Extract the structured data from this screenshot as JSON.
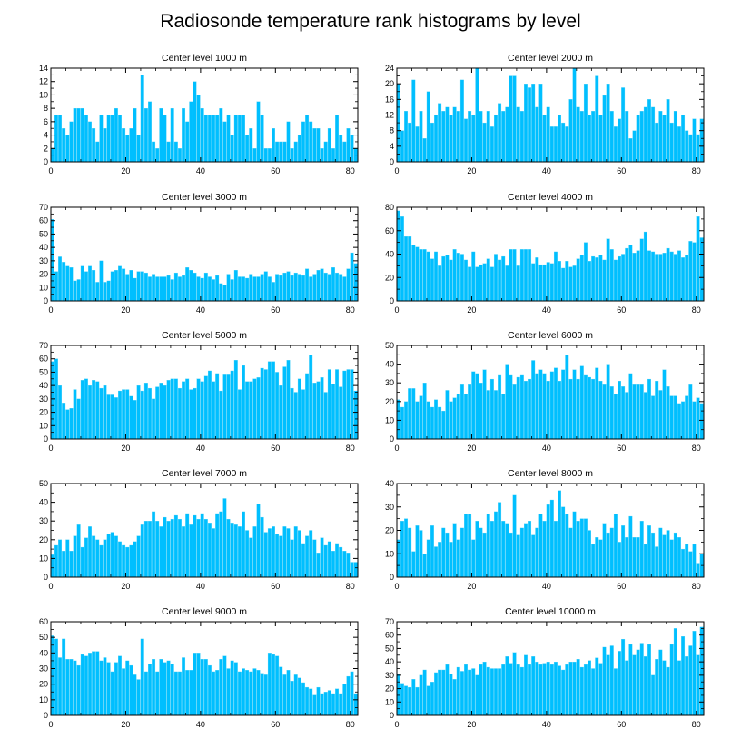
{
  "figure": {
    "title": "Radiosonde temperature rank histograms by level"
  },
  "colors": {
    "bar": "#00BFFF",
    "bar_edge": "#5AD3F6",
    "axis": "#000000",
    "background": "#FFFFFF"
  },
  "chart_data": [
    {
      "type": "bar",
      "title": "Center level 1000 m",
      "xlim": [
        0,
        82
      ],
      "ylim": [
        0,
        14
      ],
      "xticks": [
        0,
        20,
        40,
        60,
        80
      ],
      "yticks": [
        0,
        2,
        4,
        6,
        8,
        10,
        12,
        14
      ],
      "values": [
        2,
        7,
        7,
        5,
        4,
        6,
        8,
        8,
        8,
        7,
        6,
        5,
        3,
        7,
        5,
        7,
        7,
        8,
        7,
        5,
        4,
        5,
        8,
        4,
        13,
        8,
        9,
        3,
        2,
        8,
        7,
        3,
        8,
        3,
        2,
        8,
        6,
        9,
        12,
        10,
        8,
        7,
        7,
        7,
        7,
        8,
        6,
        7,
        4,
        7,
        7,
        7,
        4,
        5,
        2,
        9,
        7,
        2,
        2,
        5,
        3,
        3,
        3,
        6,
        2,
        3,
        4,
        6,
        7,
        6,
        5,
        5,
        2,
        3,
        5,
        2,
        7,
        4,
        3,
        5,
        4,
        2
      ]
    },
    {
      "type": "bar",
      "title": "Center level 2000 m",
      "xlim": [
        0,
        82
      ],
      "ylim": [
        0,
        24
      ],
      "xticks": [
        0,
        20,
        40,
        60,
        80
      ],
      "yticks": [
        0,
        4,
        8,
        12,
        16,
        20,
        24
      ],
      "values": [
        20,
        8,
        13,
        10,
        21,
        9,
        13,
        6,
        18,
        10,
        12,
        15,
        13,
        14,
        12,
        14,
        13,
        21,
        11,
        13,
        12,
        24,
        13,
        10,
        13,
        9,
        12,
        15,
        13,
        14,
        22,
        22,
        14,
        13,
        20,
        19,
        20,
        14,
        20,
        12,
        14,
        9,
        9,
        12,
        10,
        9,
        16,
        24,
        14,
        13,
        20,
        12,
        13,
        22,
        12,
        17,
        20,
        13,
        9,
        11,
        19,
        13,
        6,
        8,
        12,
        13,
        14,
        16,
        14,
        10,
        13,
        12,
        16,
        10,
        13,
        9,
        12,
        8,
        7,
        11,
        7,
        11
      ]
    },
    {
      "type": "bar",
      "title": "Center level 3000 m",
      "xlim": [
        0,
        82
      ],
      "ylim": [
        0,
        70
      ],
      "xticks": [
        0,
        20,
        40,
        60,
        80
      ],
      "yticks": [
        0,
        10,
        20,
        30,
        40,
        50,
        60,
        70
      ],
      "values": [
        61,
        22,
        33,
        29,
        26,
        25,
        15,
        16,
        26,
        22,
        26,
        23,
        14,
        30,
        14,
        15,
        22,
        23,
        26,
        24,
        20,
        23,
        17,
        22,
        22,
        21,
        18,
        20,
        18,
        18,
        18,
        19,
        16,
        21,
        18,
        19,
        25,
        23,
        21,
        18,
        17,
        21,
        18,
        16,
        19,
        13,
        12,
        20,
        16,
        23,
        18,
        18,
        17,
        20,
        18,
        18,
        20,
        22,
        18,
        14,
        20,
        19,
        21,
        22,
        19,
        21,
        20,
        19,
        24,
        18,
        20,
        23,
        24,
        21,
        20,
        25,
        21,
        20,
        18,
        24,
        36,
        28
      ]
    },
    {
      "type": "bar",
      "title": "Center level 4000 m",
      "xlim": [
        0,
        82
      ],
      "ylim": [
        0,
        80
      ],
      "xticks": [
        0,
        20,
        40,
        60,
        80
      ],
      "yticks": [
        0,
        20,
        40,
        60,
        80
      ],
      "values": [
        77,
        72,
        55,
        55,
        48,
        46,
        44,
        44,
        42,
        36,
        42,
        30,
        38,
        39,
        35,
        44,
        41,
        40,
        35,
        29,
        42,
        29,
        31,
        32,
        36,
        29,
        40,
        35,
        38,
        30,
        44,
        44,
        30,
        44,
        44,
        44,
        32,
        37,
        31,
        31,
        33,
        32,
        42,
        34,
        28,
        34,
        29,
        30,
        36,
        39,
        50,
        34,
        38,
        37,
        39,
        35,
        53,
        44,
        35,
        38,
        40,
        45,
        48,
        41,
        43,
        53,
        59,
        43,
        42,
        40,
        40,
        41,
        45,
        42,
        40,
        43,
        37,
        39,
        51,
        50,
        72,
        54
      ]
    },
    {
      "type": "bar",
      "title": "Center level 5000 m",
      "xlim": [
        0,
        82
      ],
      "ylim": [
        0,
        70
      ],
      "xticks": [
        0,
        20,
        40,
        60,
        80
      ],
      "yticks": [
        0,
        10,
        20,
        30,
        40,
        50,
        60,
        70
      ],
      "values": [
        58,
        60,
        40,
        27,
        22,
        23,
        37,
        30,
        44,
        45,
        40,
        44,
        43,
        38,
        40,
        33,
        33,
        31,
        36,
        37,
        37,
        32,
        29,
        40,
        36,
        42,
        38,
        30,
        39,
        42,
        40,
        44,
        45,
        45,
        38,
        43,
        45,
        37,
        38,
        45,
        43,
        47,
        51,
        43,
        49,
        36,
        48,
        48,
        51,
        59,
        37,
        55,
        43,
        43,
        45,
        46,
        53,
        52,
        58,
        58,
        50,
        40,
        54,
        59,
        38,
        35,
        45,
        37,
        49,
        63,
        42,
        43,
        46,
        35,
        52,
        41,
        52,
        39,
        51,
        52,
        52,
        36
      ]
    },
    {
      "type": "bar",
      "title": "Center level 6000 m",
      "xlim": [
        0,
        82
      ],
      "ylim": [
        0,
        50
      ],
      "xticks": [
        0,
        20,
        40,
        60,
        80
      ],
      "yticks": [
        0,
        10,
        20,
        30,
        40,
        50
      ],
      "values": [
        21,
        17,
        20,
        27,
        27,
        20,
        23,
        30,
        20,
        17,
        21,
        17,
        15,
        26,
        20,
        22,
        24,
        29,
        24,
        29,
        36,
        35,
        30,
        37,
        26,
        32,
        26,
        34,
        24,
        40,
        34,
        29,
        33,
        34,
        31,
        32,
        42,
        35,
        37,
        35,
        31,
        36,
        38,
        31,
        37,
        45,
        32,
        37,
        32,
        39,
        34,
        33,
        32,
        38,
        31,
        29,
        40,
        28,
        24,
        31,
        28,
        25,
        35,
        29,
        29,
        29,
        25,
        32,
        23,
        31,
        26,
        37,
        28,
        23,
        23,
        19,
        20,
        23,
        29,
        20,
        22,
        19
      ]
    },
    {
      "type": "bar",
      "title": "Center level 7000 m",
      "xlim": [
        0,
        82
      ],
      "ylim": [
        0,
        50
      ],
      "xticks": [
        0,
        20,
        40,
        60,
        80
      ],
      "yticks": [
        0,
        10,
        20,
        30,
        40,
        50
      ],
      "values": [
        12,
        17,
        20,
        14,
        20,
        14,
        22,
        28,
        16,
        21,
        27,
        22,
        20,
        17,
        20,
        23,
        24,
        22,
        19,
        17,
        16,
        17,
        19,
        22,
        28,
        30,
        30,
        35,
        30,
        27,
        32,
        30,
        31,
        33,
        31,
        27,
        34,
        28,
        33,
        31,
        34,
        31,
        29,
        26,
        34,
        35,
        42,
        31,
        29,
        28,
        27,
        35,
        25,
        21,
        27,
        39,
        32,
        24,
        26,
        27,
        23,
        22,
        27,
        26,
        20,
        27,
        25,
        18,
        22,
        25,
        20,
        13,
        21,
        17,
        19,
        14,
        18,
        16,
        14,
        13,
        8,
        8
      ]
    },
    {
      "type": "bar",
      "title": "Center level 8000 m",
      "xlim": [
        0,
        82
      ],
      "ylim": [
        0,
        40
      ],
      "xticks": [
        0,
        20,
        40,
        60,
        80
      ],
      "yticks": [
        0,
        10,
        20,
        30,
        40
      ],
      "values": [
        16,
        24,
        25,
        21,
        11,
        22,
        20,
        10,
        16,
        22,
        13,
        15,
        21,
        19,
        15,
        23,
        16,
        21,
        27,
        27,
        16,
        24,
        21,
        19,
        27,
        24,
        28,
        32,
        24,
        23,
        19,
        35,
        18,
        21,
        23,
        24,
        18,
        21,
        27,
        24,
        31,
        33,
        24,
        37,
        30,
        27,
        21,
        28,
        24,
        25,
        25,
        20,
        14,
        17,
        16,
        23,
        19,
        21,
        27,
        15,
        22,
        17,
        26,
        17,
        17,
        24,
        14,
        22,
        19,
        13,
        21,
        18,
        20,
        16,
        19,
        17,
        12,
        14,
        11,
        14,
        6,
        10
      ]
    },
    {
      "type": "bar",
      "title": "Center level 9000 m",
      "xlim": [
        0,
        82
      ],
      "ylim": [
        0,
        60
      ],
      "xticks": [
        0,
        20,
        40,
        60,
        80
      ],
      "yticks": [
        0,
        10,
        20,
        30,
        40,
        50,
        60
      ],
      "values": [
        51,
        49,
        37,
        49,
        36,
        36,
        35,
        32,
        39,
        38,
        40,
        41,
        41,
        35,
        37,
        34,
        28,
        34,
        38,
        30,
        35,
        32,
        26,
        23,
        49,
        28,
        33,
        36,
        28,
        36,
        34,
        35,
        33,
        28,
        28,
        37,
        29,
        29,
        40,
        40,
        36,
        36,
        32,
        28,
        29,
        36,
        38,
        30,
        35,
        34,
        28,
        30,
        29,
        28,
        30,
        29,
        27,
        26,
        40,
        39,
        38,
        31,
        26,
        29,
        22,
        26,
        24,
        21,
        18,
        17,
        13,
        18,
        14,
        15,
        16,
        14,
        17,
        14,
        20,
        25,
        28,
        14
      ]
    },
    {
      "type": "bar",
      "title": "Center level 10000 m",
      "xlim": [
        0,
        82
      ],
      "ylim": [
        0,
        70
      ],
      "xticks": [
        0,
        20,
        40,
        60,
        80
      ],
      "yticks": [
        0,
        10,
        20,
        30,
        40,
        50,
        60,
        70
      ],
      "values": [
        31,
        24,
        22,
        21,
        27,
        21,
        30,
        34,
        22,
        25,
        32,
        34,
        34,
        38,
        31,
        27,
        36,
        33,
        38,
        34,
        35,
        30,
        38,
        40,
        36,
        35,
        35,
        35,
        38,
        44,
        39,
        47,
        38,
        36,
        45,
        38,
        44,
        40,
        38,
        39,
        40,
        38,
        40,
        37,
        34,
        38,
        40,
        40,
        42,
        36,
        38,
        41,
        35,
        43,
        39,
        51,
        45,
        52,
        35,
        48,
        57,
        41,
        53,
        45,
        49,
        54,
        44,
        53,
        30,
        42,
        49,
        41,
        36,
        53,
        65,
        41,
        59,
        44,
        52,
        63,
        45,
        66
      ]
    }
  ]
}
